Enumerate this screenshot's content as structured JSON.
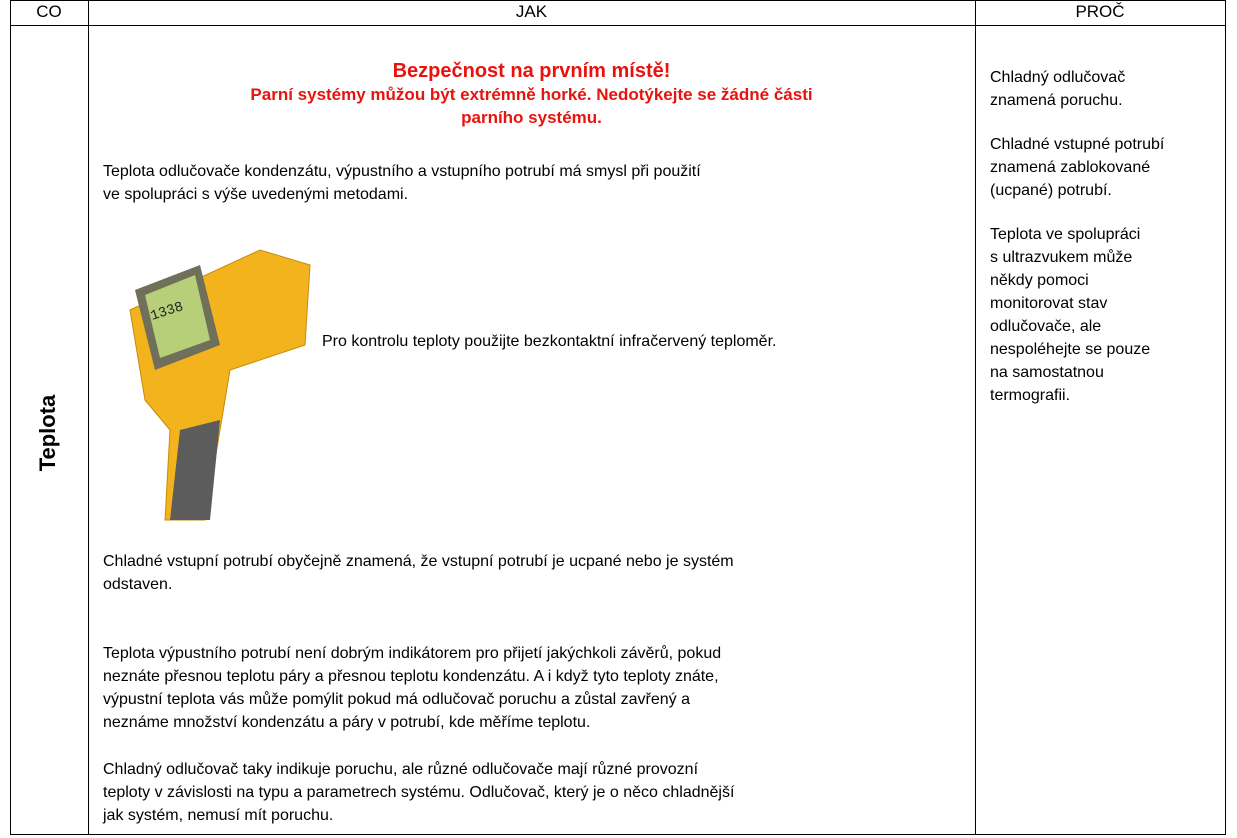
{
  "table": {
    "header": [
      "CO",
      "JAK",
      "PROČ"
    ],
    "row": {
      "co": "Teplota",
      "jak": {
        "warning_title": "Bezpečnost na prvním místě!",
        "warning_text": [
          "Parní systémy můžou být extrémně horké. Nedotýkejte se žádné části",
          "parního systému."
        ],
        "paragraphs": [
          [
            "Teplota odlučovače kondenzátu, výpustního a vstupního potrubí má smysl při použití",
            "ve spolupráci s výše uvedenými metodami."
          ]
        ],
        "image_caption": "Pro kontrolu teploty použijte bezkontaktní infračervený teploměr.",
        "paragraphs_after": [
          [
            "Chladné vstupní potrubí obyčejně znamená, že vstupní potrubí je ucpané nebo je systém",
            "odstaven."
          ],
          [
            "Teplota výpustního potrubí není dobrým indikátorem pro přijetí jakýchkoli závěrů, pokud",
            "neznáte přesnou teplotu páry a přesnou teplotu kondenzátu. A i když tyto teploty znáte,",
            "výpustní teplota vás může pomýlit pokud má odlučovač poruchu a zůstal zavřený a",
            "neznáme množství kondenzátu a páry v potrubí, kde měříme teplotu."
          ],
          [
            "Chladný odlučovač taky indikuje poruchu, ale různé odlučovače mají různé provozní",
            "teploty v závislosti na typu a parametrech systému. Odlučovač, který je o něco chladnější",
            "jak systém, nemusí mít poruchu."
          ]
        ]
      },
      "proc": [
        [
          "Chladný odlučovač",
          "znamená poruchu."
        ],
        [
          "Chladné vstupné potrubí",
          "znamená zablokované",
          "(ucpané) potrubí."
        ],
        [
          "Teplota ve spolupráci",
          "s ultrazvukem může",
          "někdy pomoci",
          "monitorovat stav",
          "odlučovače, ale",
          "nespoléhejte se pouze",
          "na samostatnou",
          "termografii."
        ]
      ]
    }
  }
}
